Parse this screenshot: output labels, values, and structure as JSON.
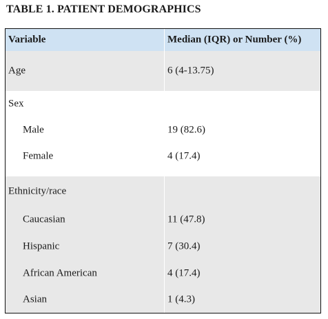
{
  "title": "TABLE 1. PATIENT DEMOGRAPHICS",
  "columns": [
    "Variable",
    "Median (IQR) or Number (%)"
  ],
  "rows": [
    {
      "variable": "Age",
      "value": "6 (4-13.75)"
    },
    {
      "variable": "Sex",
      "value": ""
    },
    {
      "variable": "Male",
      "value": "19 (82.6)"
    },
    {
      "variable": "Female",
      "value": "4 (17.4)"
    },
    {
      "variable": "Ethnicity/race",
      "value": ""
    },
    {
      "variable": "Caucasian",
      "value": "11 (47.8)"
    },
    {
      "variable": "Hispanic",
      "value": "7 (30.4)"
    },
    {
      "variable": "African American",
      "value": "4 (17.4)"
    },
    {
      "variable": "Asian",
      "value": "1 (4.3)"
    }
  ]
}
